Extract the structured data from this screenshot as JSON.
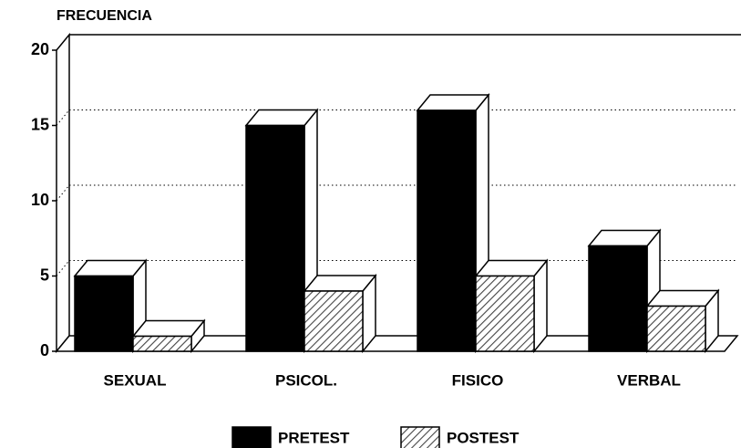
{
  "chart_data": {
    "type": "bar3d",
    "y_label": "FRECUENCIA",
    "categories": [
      "SEXUAL",
      "PSICOL.",
      "FISICO",
      "VERBAL"
    ],
    "series": [
      {
        "name": "PRETEST",
        "color": "#000000",
        "pattern": "solid",
        "values": [
          5,
          15,
          16,
          7
        ]
      },
      {
        "name": "POSTEST",
        "color": "#444444",
        "pattern": "hatch",
        "values": [
          1,
          4,
          5,
          3
        ]
      }
    ],
    "ylim": [
      0,
      20
    ],
    "yticks": [
      0,
      5,
      10,
      15,
      20
    ],
    "grid": true,
    "legend": "bottom"
  }
}
